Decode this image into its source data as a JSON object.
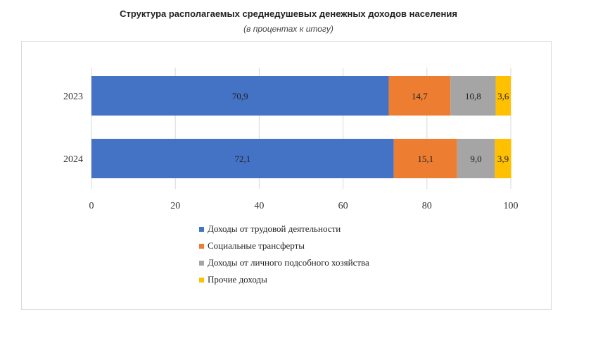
{
  "chart_data": {
    "type": "bar",
    "orientation": "horizontal",
    "stacked": true,
    "title": "Структура располагаемых среднедушевых денежных доходов населения",
    "subtitle": "(в процентах к итогу)",
    "categories": [
      "2023",
      "2024"
    ],
    "series": [
      {
        "name": "Доходы от трудовой деятельности",
        "values": [
          70.9,
          72.1
        ],
        "labels": [
          "70,9",
          "72,1"
        ],
        "color": "#4472c4"
      },
      {
        "name": "Социальные трансферты",
        "values": [
          14.7,
          15.1
        ],
        "labels": [
          "14,7",
          "15,1"
        ],
        "color": "#ed7d31"
      },
      {
        "name": "Доходы от личного подсобного хозяйства",
        "values": [
          10.8,
          9.0
        ],
        "labels": [
          "10,8",
          "9,0"
        ],
        "color": "#a5a5a5"
      },
      {
        "name": "Прочие доходы",
        "values": [
          3.6,
          3.9
        ],
        "labels": [
          "3,6",
          "3,9"
        ],
        "color": "#ffc000"
      }
    ],
    "xlim": [
      0,
      100
    ],
    "xticks": [
      "0",
      "20",
      "40",
      "60",
      "80",
      "100"
    ],
    "grid": true,
    "legend_position": "bottom"
  }
}
